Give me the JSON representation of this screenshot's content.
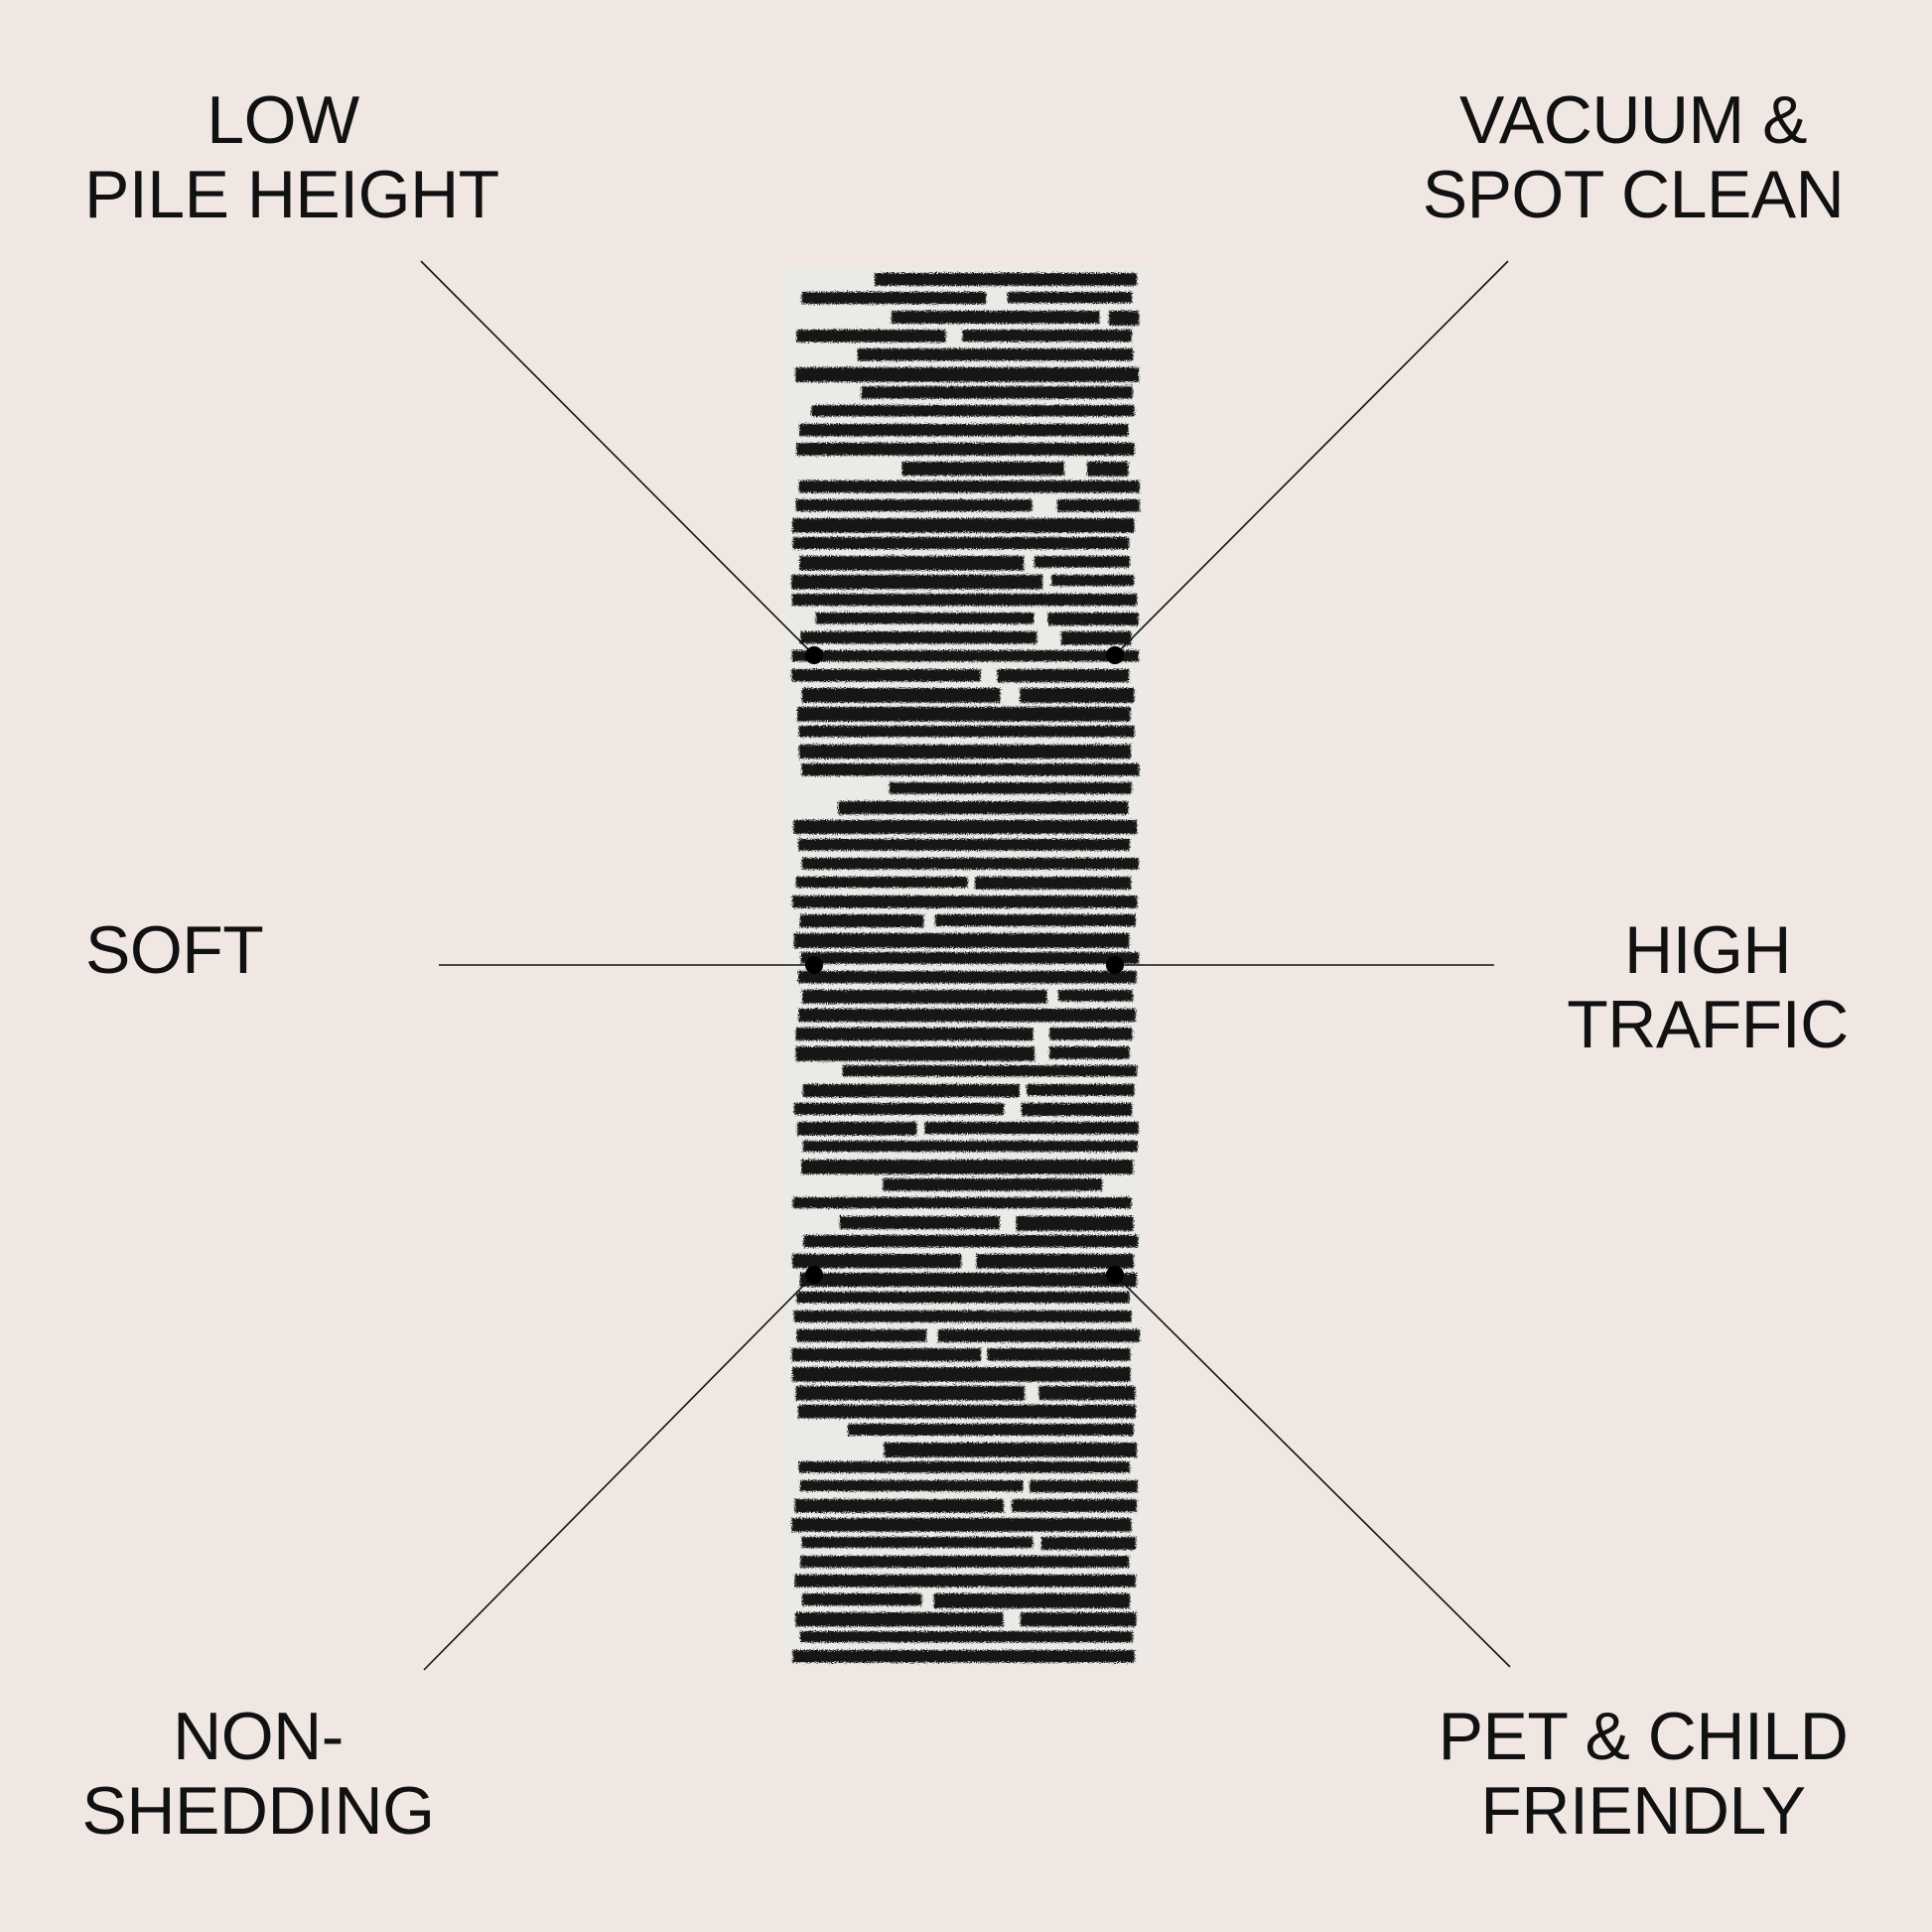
{
  "features": {
    "top_left": [
      "LOW",
      "PILE HEIGHT"
    ],
    "top_right": [
      "VACUUM &",
      "SPOT CLEAN"
    ],
    "middle_left": [
      "SOFT"
    ],
    "middle_right": [
      "HIGH",
      "TRAFFIC"
    ],
    "bottom_left": [
      "NON-",
      "SHEDDING"
    ],
    "bottom_right": [
      "PET & CHILD",
      "FRIENDLY"
    ]
  },
  "product": {
    "image": "black-and-white-striped-runner-rug",
    "colors": {
      "background": "#f0e7e3",
      "rug_base": "#ebeae6",
      "stripe": "#141414",
      "line": "#111111"
    }
  }
}
